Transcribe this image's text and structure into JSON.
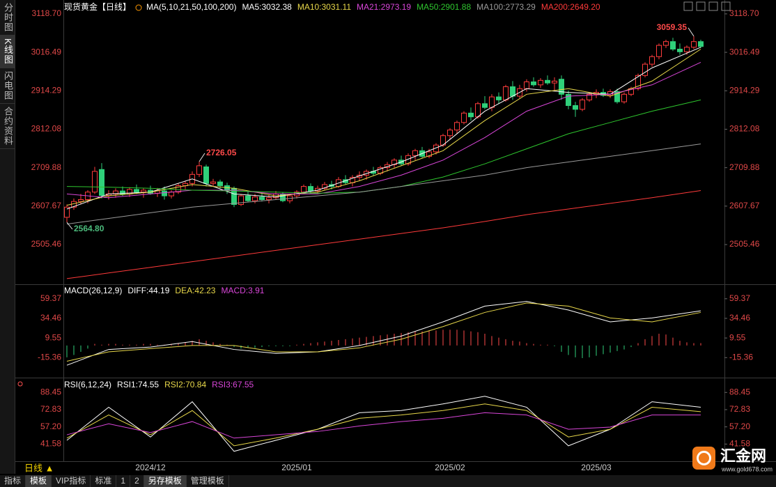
{
  "sidebar": [
    "分时图",
    "K线图",
    "闪电图",
    "合约资料"
  ],
  "bottom_tabs": [
    "指标",
    "模板",
    "VIP指标",
    "标准",
    "1",
    "2",
    "另存模板",
    "管理模板"
  ],
  "period": "日线 ▲",
  "logo": {
    "name": "汇金网",
    "url": "www.gold678.com"
  },
  "chart_data": [
    {
      "type": "candlestick",
      "title": "现货黄金【日线】",
      "indicator": "MA(5,10,21,50,100,200)",
      "ylim": [
        2400,
        3150
      ],
      "yticks": [
        {
          "value": 3118.7,
          "label": "3118.70"
        },
        3016.49,
        2914.29,
        2812.08,
        2709.88,
        2607.67,
        2505.46
      ],
      "up_color": "#ff3c3c",
      "down_color": "#2fd07a",
      "grid": false,
      "categories": [
        null,
        null,
        null,
        null,
        null,
        null,
        null,
        null,
        null,
        null,
        null,
        null,
        "2024/12",
        null,
        null,
        null,
        null,
        null,
        null,
        null,
        null,
        null,
        null,
        null,
        null,
        null,
        null,
        null,
        null,
        null,
        null,
        null,
        null,
        "2025/01",
        null,
        null,
        null,
        null,
        null,
        null,
        null,
        null,
        null,
        null,
        null,
        null,
        null,
        null,
        null,
        null,
        null,
        null,
        null,
        null,
        null,
        "2025/02",
        null,
        null,
        null,
        null,
        null,
        null,
        null,
        null,
        null,
        null,
        null,
        null,
        null,
        null,
        null,
        null,
        null,
        null,
        null,
        null,
        "2025/03",
        null,
        null,
        null,
        null,
        null,
        null,
        null,
        null,
        null,
        null,
        null,
        null,
        null,
        null,
        null
      ],
      "ohlc": [
        [
          2578,
          2612,
          2564.8,
          2605
        ],
        [
          2605,
          2628,
          2598,
          2620
        ],
        [
          2620,
          2640,
          2612,
          2625
        ],
        [
          2625,
          2650,
          2615,
          2645
        ],
        [
          2645,
          2712,
          2640,
          2700
        ],
        [
          2705,
          2722,
          2628,
          2636
        ],
        [
          2636,
          2650,
          2625,
          2640
        ],
        [
          2640,
          2655,
          2630,
          2648
        ],
        [
          2648,
          2660,
          2635,
          2640
        ],
        [
          2640,
          2658,
          2632,
          2652
        ],
        [
          2652,
          2665,
          2640,
          2645
        ],
        [
          2645,
          2655,
          2630,
          2650
        ],
        [
          2650,
          2662,
          2638,
          2642
        ],
        [
          2642,
          2656,
          2632,
          2648
        ],
        [
          2648,
          2660,
          2625,
          2635
        ],
        [
          2635,
          2650,
          2628,
          2645
        ],
        [
          2645,
          2668,
          2640,
          2662
        ],
        [
          2662,
          2675,
          2652,
          2668
        ],
        [
          2668,
          2700,
          2660,
          2692
        ],
        [
          2692,
          2726.05,
          2685,
          2715
        ],
        [
          2712,
          2718,
          2660,
          2668
        ],
        [
          2668,
          2680,
          2660,
          2672
        ],
        [
          2672,
          2678,
          2655,
          2662
        ],
        [
          2662,
          2670,
          2640,
          2650
        ],
        [
          2655,
          2660,
          2605,
          2612
        ],
        [
          2612,
          2640,
          2608,
          2635
        ],
        [
          2635,
          2648,
          2618,
          2622
        ],
        [
          2622,
          2640,
          2615,
          2632
        ],
        [
          2632,
          2642,
          2620,
          2625
        ],
        [
          2625,
          2638,
          2615,
          2630
        ],
        [
          2630,
          2648,
          2625,
          2640
        ],
        [
          2640,
          2645,
          2618,
          2622
        ],
        [
          2622,
          2640,
          2615,
          2635
        ],
        [
          2635,
          2650,
          2628,
          2645
        ],
        [
          2645,
          2665,
          2640,
          2660
        ],
        [
          2660,
          2668,
          2640,
          2648
        ],
        [
          2648,
          2662,
          2640,
          2655
        ],
        [
          2655,
          2672,
          2650,
          2665
        ],
        [
          2665,
          2675,
          2652,
          2660
        ],
        [
          2660,
          2685,
          2656,
          2678
        ],
        [
          2678,
          2690,
          2665,
          2670
        ],
        [
          2670,
          2690,
          2660,
          2684
        ],
        [
          2684,
          2700,
          2675,
          2690
        ],
        [
          2690,
          2705,
          2678,
          2700
        ],
        [
          2700,
          2712,
          2688,
          2695
        ],
        [
          2695,
          2715,
          2690,
          2710
        ],
        [
          2710,
          2725,
          2700,
          2718
        ],
        [
          2718,
          2735,
          2710,
          2730
        ],
        [
          2730,
          2742,
          2715,
          2720
        ],
        [
          2720,
          2748,
          2715,
          2742
        ],
        [
          2742,
          2760,
          2730,
          2755
        ],
        [
          2755,
          2765,
          2735,
          2740
        ],
        [
          2740,
          2760,
          2735,
          2752
        ],
        [
          2752,
          2775,
          2745,
          2770
        ],
        [
          2770,
          2800,
          2765,
          2795
        ],
        [
          2795,
          2815,
          2785,
          2810
        ],
        [
          2810,
          2835,
          2800,
          2830
        ],
        [
          2830,
          2860,
          2825,
          2855
        ],
        [
          2855,
          2870,
          2835,
          2845
        ],
        [
          2845,
          2885,
          2840,
          2880
        ],
        [
          2880,
          2900,
          2865,
          2870
        ],
        [
          2870,
          2905,
          2860,
          2898
        ],
        [
          2898,
          2910,
          2880,
          2890
        ],
        [
          2890,
          2930,
          2885,
          2925
        ],
        [
          2925,
          2940,
          2890,
          2900
        ],
        [
          2900,
          2930,
          2895,
          2920
        ],
        [
          2920,
          2945,
          2912,
          2938
        ],
        [
          2938,
          2950,
          2925,
          2930
        ],
        [
          2930,
          2948,
          2922,
          2942
        ],
        [
          2942,
          2955,
          2930,
          2935
        ],
        [
          2935,
          2950,
          2915,
          2940
        ],
        [
          2945,
          2955,
          2890,
          2905
        ],
        [
          2905,
          2915,
          2865,
          2875
        ],
        [
          2875,
          2885,
          2845,
          2865
        ],
        [
          2865,
          2895,
          2860,
          2890
        ],
        [
          2890,
          2910,
          2885,
          2905
        ],
        [
          2905,
          2918,
          2895,
          2910
        ],
        [
          2910,
          2920,
          2898,
          2902
        ],
        [
          2902,
          2918,
          2895,
          2912
        ],
        [
          2912,
          2920,
          2880,
          2885
        ],
        [
          2885,
          2910,
          2880,
          2905
        ],
        [
          2905,
          2925,
          2900,
          2920
        ],
        [
          2920,
          2960,
          2915,
          2955
        ],
        [
          2955,
          2990,
          2950,
          2985
        ],
        [
          2985,
          3010,
          2978,
          3005
        ],
        [
          3005,
          3040,
          2998,
          3035
        ],
        [
          3035,
          3050,
          3028,
          3045
        ],
        [
          3045,
          3055,
          3020,
          3025
        ],
        [
          3025,
          3040,
          3010,
          3018
        ],
        [
          3018,
          3035,
          3010,
          3030
        ],
        [
          3030,
          3059.35,
          3025,
          3045
        ],
        [
          3045,
          3050,
          3028,
          3032
        ]
      ],
      "x": [
        0,
        6,
        12,
        18,
        24,
        30,
        36,
        42,
        48,
        54,
        60,
        66,
        72,
        78,
        84,
        91
      ],
      "series": [
        {
          "name": "MA5:3032.38",
          "color": "#ffffff",
          "values": [
            2600,
            2640,
            2645,
            2680,
            2640,
            2632,
            2650,
            2688,
            2725,
            2770,
            2860,
            2920,
            2910,
            2905,
            2975,
            3030
          ]
        },
        {
          "name": "MA10:3031.11",
          "color": "#e8d84a",
          "values": [
            2610,
            2635,
            2645,
            2665,
            2655,
            2635,
            2645,
            2675,
            2715,
            2755,
            2835,
            2905,
            2920,
            2900,
            2940,
            3025
          ]
        },
        {
          "name": "MA21:2973.19",
          "color": "#d946d9",
          "values": [
            2640,
            2630,
            2640,
            2650,
            2650,
            2640,
            2640,
            2660,
            2690,
            2730,
            2790,
            2860,
            2900,
            2905,
            2930,
            2990
          ]
        },
        {
          "name": "MA50:2901.88",
          "color": "#2ec62e",
          "values": [
            2660,
            2658,
            2655,
            2650,
            2648,
            2645,
            2642,
            2645,
            2660,
            2685,
            2720,
            2760,
            2800,
            2830,
            2860,
            2890
          ]
        },
        {
          "name": "MA100:2773.29",
          "color": "#9a9a9a",
          "values": [
            2560,
            2575,
            2590,
            2605,
            2615,
            2625,
            2635,
            2645,
            2660,
            2675,
            2690,
            2710,
            2725,
            2740,
            2755,
            2773
          ]
        },
        {
          "name": "MA200:2649.20",
          "color": "#ff3a3a",
          "values": [
            2415,
            2430,
            2445,
            2460,
            2475,
            2490,
            2505,
            2520,
            2535,
            2550,
            2567,
            2585,
            2600,
            2615,
            2630,
            2649
          ]
        }
      ],
      "annotations": [
        {
          "x": 0,
          "value": 2564.8,
          "label": "2564.80",
          "color": "#4cbb7c"
        },
        {
          "x": 19,
          "value": 2726.05,
          "label": "2726.05",
          "color": "#ff4a4a"
        },
        {
          "x": 90,
          "value": 3059.35,
          "label": "3059.35",
          "color": "#ff4a4a"
        }
      ]
    },
    {
      "type": "macd",
      "indicator": "MACD(26,12,9)",
      "ylim": [
        -39,
        76
      ],
      "yticks": [
        59.37,
        34.46,
        9.55,
        -15.36
      ],
      "x": [
        0,
        6,
        12,
        18,
        24,
        30,
        36,
        42,
        48,
        54,
        60,
        66,
        72,
        78,
        84,
        91
      ],
      "series": [
        {
          "name": "DIFF:44.19",
          "color": "#ffffff",
          "values": [
            -25,
            -5,
            -2,
            5,
            -5,
            -10,
            -8,
            0,
            12,
            30,
            50,
            56,
            45,
            30,
            35,
            44
          ]
        },
        {
          "name": "DEA:42.23",
          "color": "#e8d84a",
          "values": [
            -20,
            -8,
            -4,
            0,
            0,
            -8,
            -8,
            -3,
            8,
            24,
            42,
            54,
            50,
            35,
            30,
            42
          ]
        }
      ],
      "histogram": {
        "name": "MACD:3.91",
        "color": "#d946d9",
        "up_color": "#ff4a4a",
        "down_color": "#2fd07a",
        "values": [
          -15,
          -12,
          -8,
          -4,
          2,
          1,
          2,
          2,
          1,
          1,
          1,
          2,
          2,
          1,
          1,
          2,
          3,
          4,
          6,
          8,
          6,
          4,
          2,
          1,
          -2,
          -4,
          -3,
          -3,
          -2,
          -1,
          -1,
          -1,
          -1,
          1,
          2,
          3,
          4,
          5,
          6,
          7,
          8,
          9,
          10,
          11,
          12,
          13,
          14,
          15,
          16,
          17,
          18,
          18,
          19,
          19,
          20,
          20,
          20,
          19,
          18,
          17,
          15,
          12,
          10,
          8,
          6,
          5,
          3,
          2,
          1,
          1,
          -1,
          -8,
          -12,
          -15,
          -16,
          -15,
          -13,
          -11,
          -9,
          -7,
          -5,
          -2,
          3,
          8,
          12,
          15,
          14,
          10,
          6,
          4,
          3,
          3
        ]
      }
    },
    {
      "type": "line",
      "indicator": "RSI(6,12,24)",
      "ylim": [
        26,
        100
      ],
      "yticks": [
        88.45,
        72.83,
        {
          "value": 57.2,
          "label": "57.20"
        },
        41.58
      ],
      "x": [
        0,
        6,
        12,
        18,
        24,
        30,
        36,
        42,
        48,
        54,
        60,
        66,
        72,
        78,
        84,
        91
      ],
      "series": [
        {
          "name": "RSI1:74.55",
          "color": "#ffffff",
          "values": [
            45,
            75,
            48,
            80,
            35,
            45,
            55,
            70,
            72,
            78,
            85,
            75,
            40,
            55,
            80,
            75
          ]
        },
        {
          "name": "RSI2:70.84",
          "color": "#e8d84a",
          "values": [
            47,
            68,
            50,
            72,
            40,
            47,
            55,
            65,
            68,
            72,
            78,
            72,
            48,
            55,
            75,
            71
          ]
        },
        {
          "name": "RSI3:67.55",
          "color": "#d946d9",
          "values": [
            50,
            60,
            52,
            62,
            47,
            50,
            53,
            58,
            62,
            65,
            70,
            68,
            55,
            57,
            68,
            68
          ]
        }
      ]
    }
  ]
}
